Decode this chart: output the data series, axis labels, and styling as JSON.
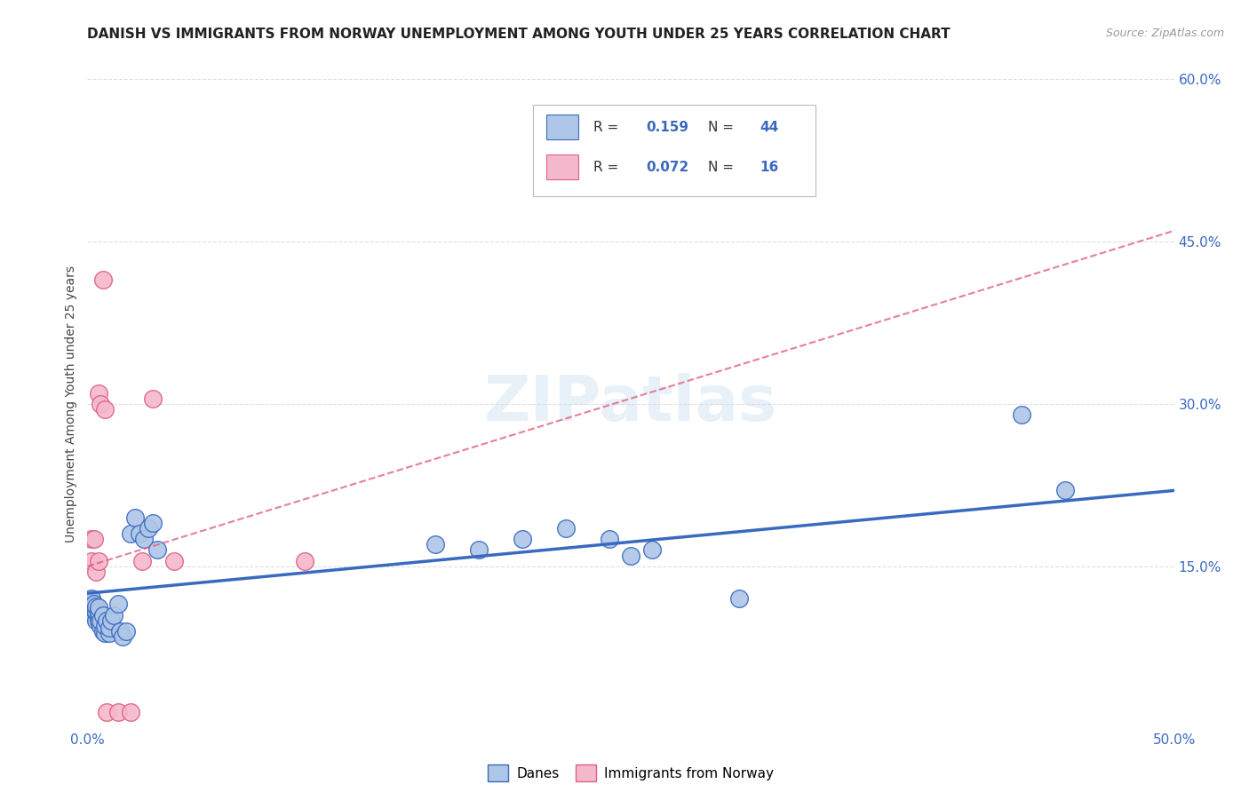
{
  "title": "DANISH VS IMMIGRANTS FROM NORWAY UNEMPLOYMENT AMONG YOUTH UNDER 25 YEARS CORRELATION CHART",
  "source": "Source: ZipAtlas.com",
  "ylabel": "Unemployment Among Youth under 25 years",
  "xlim": [
    0.0,
    0.5
  ],
  "ylim": [
    0.0,
    0.6
  ],
  "xticks": [
    0.0,
    0.1,
    0.2,
    0.3,
    0.4,
    0.5
  ],
  "yticks": [
    0.0,
    0.15,
    0.3,
    0.45,
    0.6
  ],
  "xtick_labels": [
    "0.0%",
    "",
    "",
    "",
    "",
    "50.0%"
  ],
  "ytick_labels": [
    "",
    "15.0%",
    "30.0%",
    "45.0%",
    "60.0%"
  ],
  "legend_labels": [
    "Danes",
    "Immigrants from Norway"
  ],
  "blue_R": "0.159",
  "blue_N": "44",
  "pink_R": "0.072",
  "pink_N": "16",
  "blue_color": "#aec6e8",
  "pink_color": "#f4b8cc",
  "blue_line_color": "#3a6abf",
  "pink_line_color": "#e06080",
  "watermark": "ZIPatlas",
  "background_color": "#ffffff",
  "grid_color": "#d8d8d8",
  "blue_scatter_x": [
    0.002,
    0.002,
    0.003,
    0.003,
    0.003,
    0.004,
    0.004,
    0.004,
    0.005,
    0.005,
    0.005,
    0.005,
    0.006,
    0.006,
    0.007,
    0.007,
    0.008,
    0.008,
    0.009,
    0.01,
    0.01,
    0.011,
    0.012,
    0.014,
    0.015,
    0.016,
    0.018,
    0.02,
    0.022,
    0.024,
    0.026,
    0.028,
    0.03,
    0.032,
    0.16,
    0.18,
    0.2,
    0.22,
    0.24,
    0.25,
    0.26,
    0.3,
    0.43,
    0.45
  ],
  "blue_scatter_y": [
    0.115,
    0.12,
    0.105,
    0.11,
    0.115,
    0.1,
    0.108,
    0.113,
    0.1,
    0.105,
    0.108,
    0.112,
    0.095,
    0.1,
    0.09,
    0.105,
    0.088,
    0.095,
    0.1,
    0.088,
    0.093,
    0.1,
    0.105,
    0.115,
    0.09,
    0.085,
    0.09,
    0.18,
    0.195,
    0.18,
    0.175,
    0.185,
    0.19,
    0.165,
    0.17,
    0.165,
    0.175,
    0.185,
    0.175,
    0.16,
    0.165,
    0.12,
    0.29,
    0.22
  ],
  "pink_scatter_x": [
    0.002,
    0.002,
    0.003,
    0.004,
    0.005,
    0.005,
    0.006,
    0.007,
    0.008,
    0.009,
    0.014,
    0.02,
    0.025,
    0.03,
    0.04,
    0.1
  ],
  "pink_scatter_y": [
    0.155,
    0.175,
    0.175,
    0.145,
    0.155,
    0.31,
    0.3,
    0.415,
    0.295,
    0.015,
    0.015,
    0.015,
    0.155,
    0.305,
    0.155,
    0.155
  ],
  "blue_trendline_x": [
    0.0,
    0.5
  ],
  "blue_trendline_y": [
    0.125,
    0.22
  ],
  "pink_trendline_x": [
    0.0,
    0.5
  ],
  "pink_trendline_y": [
    0.15,
    0.46
  ]
}
